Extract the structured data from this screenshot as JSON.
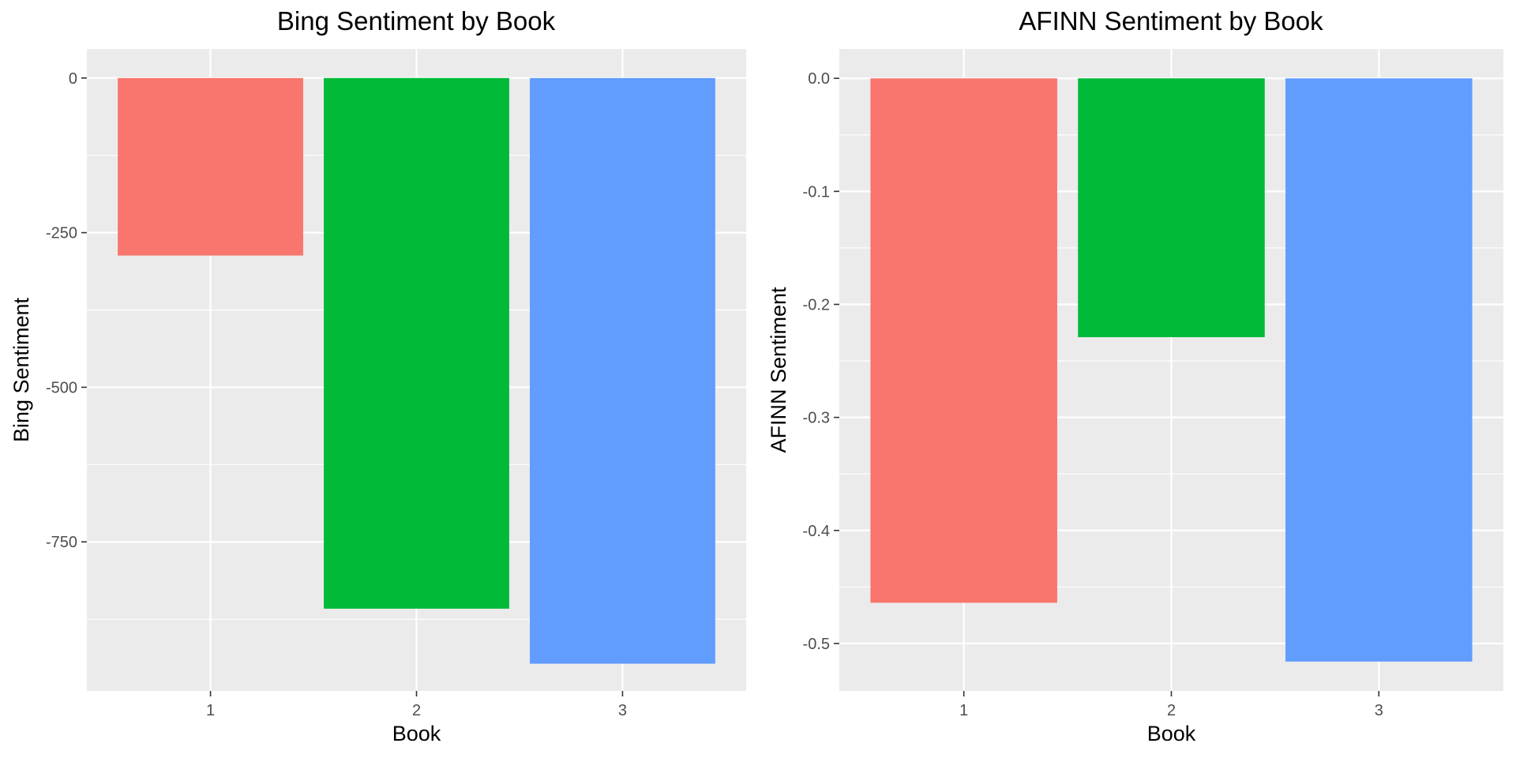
{
  "chart_data": [
    {
      "type": "bar",
      "title": "Bing Sentiment by Book",
      "xlabel": "Book",
      "ylabel": "Bing Sentiment",
      "categories": [
        "1",
        "2",
        "3"
      ],
      "values": [
        -287,
        -858,
        -947
      ],
      "colors": [
        "#F8766D",
        "#00BA38",
        "#619CFF"
      ],
      "ylim": [
        -991,
        47
      ],
      "yticks": [
        0,
        -250,
        -500,
        -750
      ],
      "ytick_labels": [
        "0",
        "-250",
        "-500",
        "-750"
      ],
      "minor_yticks": [
        -125,
        -375,
        -625,
        -875
      ],
      "grid": true,
      "panel_background": "#EBEBEB",
      "gridline_color": "#FFFFFF",
      "legend": "none"
    },
    {
      "type": "bar",
      "title": "AFINN Sentiment by Book",
      "xlabel": "Book",
      "ylabel": "AFINN Sentiment",
      "categories": [
        "1",
        "2",
        "3"
      ],
      "values": [
        -0.464,
        -0.229,
        -0.516
      ],
      "colors": [
        "#F8766D",
        "#00BA38",
        "#619CFF"
      ],
      "ylim": [
        -0.542,
        0.026
      ],
      "yticks": [
        0.0,
        -0.1,
        -0.2,
        -0.3,
        -0.4,
        -0.5
      ],
      "ytick_labels": [
        "0.0",
        "-0.1",
        "-0.2",
        "-0.3",
        "-0.4",
        "-0.5"
      ],
      "minor_yticks": [
        -0.05,
        -0.15,
        -0.25,
        -0.35,
        -0.45
      ],
      "grid": true,
      "panel_background": "#EBEBEB",
      "gridline_color": "#FFFFFF",
      "legend": "none"
    }
  ]
}
